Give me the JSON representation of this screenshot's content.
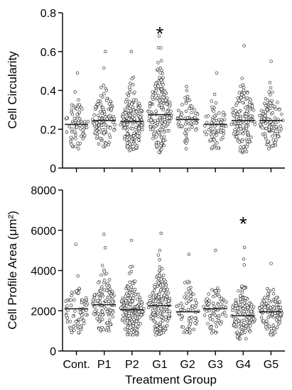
{
  "chart_data": [
    {
      "type": "scatter",
      "subtype": "beeswarm",
      "categories": [
        "Cont.",
        "P1",
        "P2",
        "G1",
        "G2",
        "G3",
        "G4",
        "G5"
      ],
      "ylabel": "Cell Circularity",
      "xlabel": "",
      "ylim": [
        0,
        0.8
      ],
      "yticks": [
        "0",
        "0.2",
        "0.4",
        "0.6",
        "0.8"
      ],
      "yticks_values": [
        0,
        0.2,
        0.4,
        0.6,
        0.8
      ],
      "grid": false,
      "medians": [
        0.225,
        0.245,
        0.24,
        0.275,
        0.25,
        0.225,
        0.245,
        0.245
      ],
      "ranges": [
        [
          0.1,
          0.49
        ],
        [
          0.11,
          0.6
        ],
        [
          0.09,
          0.6
        ],
        [
          0.08,
          0.68
        ],
        [
          0.1,
          0.42
        ],
        [
          0.1,
          0.49
        ],
        [
          0.08,
          0.63
        ],
        [
          0.1,
          0.55
        ]
      ],
      "counts": [
        75,
        130,
        190,
        190,
        70,
        80,
        150,
        120
      ],
      "significance": [
        "",
        "",
        "",
        "*",
        "",
        "",
        "",
        ""
      ]
    },
    {
      "type": "scatter",
      "subtype": "beeswarm",
      "categories": [
        "Cont.",
        "P1",
        "P2",
        "G1",
        "G2",
        "G3",
        "G4",
        "G5"
      ],
      "ylabel": "Cell Profile Area (μm²)",
      "xlabel": "Treatment Group",
      "ylim": [
        0,
        8000
      ],
      "yticks": [
        "0",
        "2000",
        "4000",
        "6000",
        "8000"
      ],
      "yticks_values": [
        0,
        2000,
        4000,
        6000,
        8000
      ],
      "grid": false,
      "medians": [
        2100,
        2300,
        2050,
        2250,
        1950,
        2100,
        1750,
        1950
      ],
      "ranges": [
        [
          900,
          5300
        ],
        [
          1000,
          5800
        ],
        [
          800,
          5500
        ],
        [
          800,
          5850
        ],
        [
          900,
          4800
        ],
        [
          900,
          5000
        ],
        [
          600,
          5150
        ],
        [
          800,
          4350
        ]
      ],
      "counts": [
        75,
        130,
        190,
        190,
        70,
        80,
        150,
        120
      ],
      "significance": [
        "",
        "",
        "",
        "",
        "",
        "",
        "*",
        ""
      ]
    }
  ]
}
